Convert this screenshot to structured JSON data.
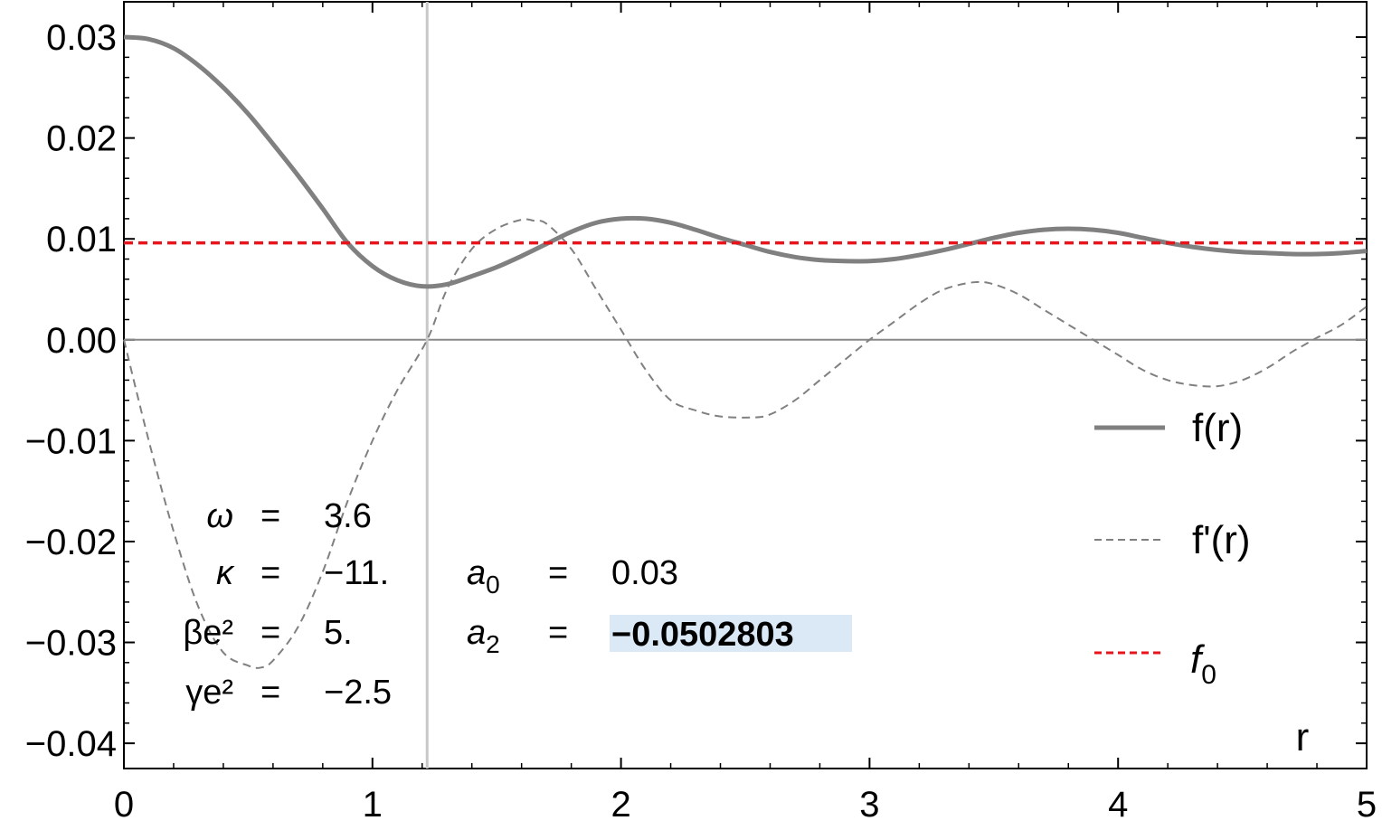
{
  "chart_data": {
    "type": "line",
    "xlabel": "r",
    "xlim": [
      0,
      5
    ],
    "ylim": [
      -0.0425,
      0.0335
    ],
    "x_ticks": [
      "0",
      "1",
      "2",
      "3",
      "4",
      "5"
    ],
    "y_ticks": [
      "0.03",
      "0.02",
      "0.01",
      "0.00",
      "−0.01",
      "−0.02",
      "−0.03",
      "−0.04"
    ],
    "x_tick_values": [
      0,
      1,
      2,
      3,
      4,
      5
    ],
    "y_tick_values": [
      0.03,
      0.02,
      0.01,
      0.0,
      -0.01,
      -0.02,
      -0.03,
      -0.04
    ],
    "vertical_marker_x": 1.22,
    "series": [
      {
        "name": "f(r)",
        "style": "solid",
        "color": "#808080",
        "x": [
          0,
          0.1,
          0.2,
          0.3,
          0.4,
          0.5,
          0.6,
          0.7,
          0.8,
          0.9,
          1.0,
          1.1,
          1.2,
          1.3,
          1.4,
          1.5,
          1.6,
          1.7,
          1.8,
          1.9,
          2.0,
          2.1,
          2.2,
          2.3,
          2.4,
          2.5,
          2.6,
          2.7,
          2.8,
          2.9,
          3.0,
          3.1,
          3.2,
          3.3,
          3.4,
          3.5,
          3.6,
          3.7,
          3.8,
          3.9,
          4.0,
          4.1,
          4.2,
          4.3,
          4.4,
          4.5,
          4.6,
          4.7,
          4.8,
          4.9,
          5.0
        ],
        "y": [
          0.03,
          0.0298,
          0.0289,
          0.0272,
          0.025,
          0.0224,
          0.0194,
          0.0163,
          0.013,
          0.0096,
          0.0073,
          0.0059,
          0.0053,
          0.0055,
          0.0063,
          0.0072,
          0.0083,
          0.0095,
          0.0107,
          0.0116,
          0.012,
          0.012,
          0.0116,
          0.0109,
          0.0101,
          0.0094,
          0.0087,
          0.0082,
          0.0079,
          0.0078,
          0.0078,
          0.008,
          0.0084,
          0.0089,
          0.0095,
          0.0101,
          0.0106,
          0.0109,
          0.011,
          0.0109,
          0.0106,
          0.0101,
          0.0096,
          0.0092,
          0.0089,
          0.0087,
          0.0086,
          0.0085,
          0.0085,
          0.0086,
          0.0088
        ]
      },
      {
        "name": "f'(r)",
        "style": "dashed",
        "color": "#808080",
        "x": [
          0,
          0.1,
          0.2,
          0.3,
          0.4,
          0.5,
          0.55,
          0.6,
          0.7,
          0.8,
          0.9,
          1.0,
          1.1,
          1.22,
          1.3,
          1.4,
          1.5,
          1.6,
          1.65,
          1.7,
          1.8,
          1.9,
          2.0,
          2.1,
          2.2,
          2.3,
          2.4,
          2.53,
          2.6,
          2.7,
          2.8,
          2.9,
          3.0,
          3.1,
          3.2,
          3.3,
          3.42,
          3.5,
          3.6,
          3.7,
          3.8,
          3.9,
          4.0,
          4.1,
          4.2,
          4.3,
          4.4,
          4.5,
          4.6,
          4.7,
          4.75,
          4.8,
          4.9,
          5.0
        ],
        "y": [
          0.0,
          -0.01,
          -0.019,
          -0.0265,
          -0.031,
          -0.0323,
          -0.0325,
          -0.0318,
          -0.0285,
          -0.023,
          -0.016,
          -0.01,
          -0.005,
          0.0,
          0.005,
          0.009,
          0.011,
          0.0119,
          0.0118,
          0.0115,
          0.009,
          0.005,
          0.001,
          -0.003,
          -0.006,
          -0.007,
          -0.0076,
          -0.0077,
          -0.0074,
          -0.006,
          -0.004,
          -0.002,
          0.0,
          0.0018,
          0.0036,
          0.005,
          0.0057,
          0.0055,
          0.0045,
          0.003,
          0.0015,
          0.0,
          -0.0015,
          -0.003,
          -0.004,
          -0.0045,
          -0.0046,
          -0.004,
          -0.0028,
          -0.0012,
          -0.0005,
          0.0002,
          0.0015,
          0.0033
        ]
      },
      {
        "name": "f0",
        "style": "dashed",
        "color": "#e8141c",
        "x": [
          0,
          5
        ],
        "y": [
          0.0096,
          0.0096
        ]
      }
    ],
    "legend": {
      "placement": "right",
      "entries": [
        {
          "label": "f(r)",
          "style": "solid",
          "color": "#808080"
        },
        {
          "label": "f'(r)",
          "style": "dashed",
          "color": "#808080"
        },
        {
          "label": "f",
          "subscript": "0",
          "style": "dashed",
          "color": "#e8141c"
        }
      ]
    },
    "annotations": {
      "params_left": [
        {
          "name": "ω",
          "eq": "=",
          "value": "3.6"
        },
        {
          "name": "κ",
          "eq": "=",
          "value": "−11."
        },
        {
          "name": "βe²",
          "eq": "=",
          "value": "5."
        },
        {
          "name": "γe²",
          "eq": "=",
          "value": "−2.5"
        }
      ],
      "params_right": [
        {
          "name": "a",
          "sub": "0",
          "eq": "=",
          "value": "0.03"
        },
        {
          "name": "a",
          "sub": "2",
          "eq": "=",
          "value": "−0.0502803",
          "highlighted": true
        }
      ]
    },
    "grid": false
  }
}
